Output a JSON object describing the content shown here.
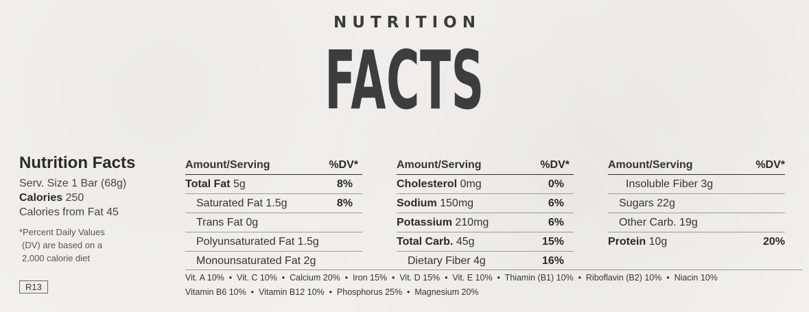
{
  "header": {
    "top": "NUTRITION",
    "main": "FACTS"
  },
  "summary": {
    "title": "Nutrition Facts",
    "serving": "Serv. Size 1 Bar (68g)",
    "calories_label": "Calories",
    "calories_value": "250",
    "calories_fat": "Calories from Fat 45",
    "footnote_1": "*Percent Daily Values",
    "footnote_2": "(DV) are based on a",
    "footnote_3": "2,000 calorie diet",
    "code": "R13"
  },
  "table": {
    "amount_header": "Amount/Serving",
    "dv_header": "%DV*",
    "col1": [
      {
        "label": "Total Fat",
        "amount": "5g",
        "dv": "8%",
        "bold": true
      },
      {
        "label": "Saturated Fat",
        "amount": "1.5g",
        "dv": "8%",
        "bold": false
      },
      {
        "label": "Trans Fat",
        "amount": "0g",
        "dv": "",
        "bold": false
      },
      {
        "label": "Polyunsaturated Fat",
        "amount": "1.5g",
        "dv": "",
        "bold": false
      },
      {
        "label": "Monounsaturated Fat",
        "amount": "2g",
        "dv": "",
        "bold": false
      }
    ],
    "col2": [
      {
        "label": "Cholesterol",
        "amount": "0mg",
        "dv": "0%",
        "bold": true
      },
      {
        "label": "Sodium",
        "amount": "150mg",
        "dv": "6%",
        "bold": true
      },
      {
        "label": "Potassium",
        "amount": "210mg",
        "dv": "6%",
        "bold": true
      },
      {
        "label": "Total Carb.",
        "amount": "45g",
        "dv": "15%",
        "bold": true
      },
      {
        "label": "Dietary Fiber",
        "amount": "4g",
        "dv": "16%",
        "bold": false
      }
    ],
    "col3": [
      {
        "label": "Insoluble Fiber",
        "amount": "3g",
        "dv": "",
        "bold": false
      },
      {
        "label": "Sugars",
        "amount": "22g",
        "dv": "",
        "bold": false
      },
      {
        "label": "Other Carb.",
        "amount": "19g",
        "dv": "",
        "bold": false
      },
      {
        "label": "Protein",
        "amount": "10g",
        "dv": "20%",
        "bold": true
      }
    ]
  },
  "vitamins": {
    "line1": "Vit. A 10%  •  Vit. C 10%  •  Calcium 20%  •  Iron 15%  •  Vit. D 15%  •  Vit. E 10%  •  Thiamin (B1) 10%  •  Riboflavin (B2) 10%  •  Niacin 10%",
    "line2": "Vitamin B6 10%  •  Vitamin B12 10%  •  Phosphorus 25%  •  Magnesium 20%"
  }
}
